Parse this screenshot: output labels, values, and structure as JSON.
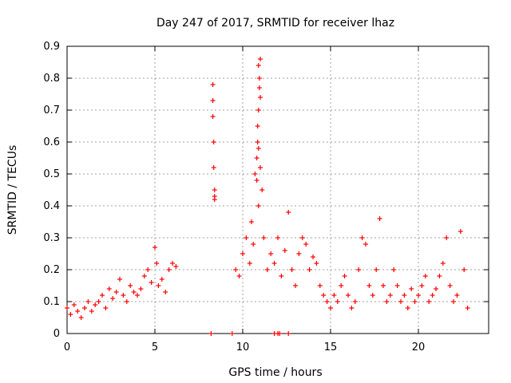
{
  "chart_data": {
    "type": "scatter",
    "title": "Day 247 of 2017, SRMTID for receiver lhaz",
    "xlabel": "GPS time / hours",
    "ylabel": "SRMTID / TECUs",
    "xlim": [
      0,
      24.0
    ],
    "ylim": [
      0,
      0.9
    ],
    "xticks": [
      0,
      5,
      10,
      15,
      20
    ],
    "xtick_labels": [
      "0",
      "5",
      "10",
      "15",
      "20"
    ],
    "yticks": [
      0,
      0.1,
      0.2,
      0.3,
      0.4,
      0.5,
      0.6,
      0.7,
      0.8,
      0.9
    ],
    "ytick_labels": [
      "0",
      "0.1",
      "0.2",
      "0.3",
      "0.4",
      "0.5",
      "0.6",
      "0.7",
      "0.8",
      "0.9"
    ],
    "grid": true,
    "legend": "none",
    "marker": "+",
    "color": "#ff0000",
    "series": [
      {
        "name": "SRMTID",
        "x": [
          0.0,
          0.2,
          0.4,
          0.6,
          0.8,
          1.0,
          1.2,
          1.4,
          1.6,
          1.8,
          2.0,
          2.2,
          2.4,
          2.6,
          2.8,
          3.0,
          3.2,
          3.4,
          3.6,
          3.8,
          4.0,
          4.2,
          4.4,
          4.6,
          4.8,
          5.0,
          5.1,
          5.2,
          5.4,
          5.6,
          5.8,
          6.0,
          6.2,
          8.3,
          8.3,
          8.3,
          8.35,
          8.35,
          8.4,
          8.4,
          8.4,
          9.6,
          9.8,
          10.0,
          10.2,
          10.4,
          10.5,
          10.6,
          10.7,
          10.8,
          10.85,
          10.9,
          10.95,
          11.0,
          11.1,
          11.2,
          11.4,
          11.6,
          11.8,
          12.0,
          12.2,
          12.4,
          12.6,
          12.8,
          13.0,
          13.2,
          13.4,
          13.6,
          13.8,
          14.0,
          14.2,
          14.4,
          14.6,
          14.8,
          15.0,
          15.2,
          15.4,
          15.6,
          15.8,
          16.0,
          16.2,
          16.4,
          16.6,
          16.8,
          17.0,
          17.2,
          17.4,
          17.6,
          17.8,
          18.0,
          18.2,
          18.4,
          18.6,
          18.8,
          19.0,
          19.2,
          19.4,
          19.6,
          19.8,
          20.0,
          20.2,
          20.4,
          20.6,
          20.8,
          21.0,
          21.2,
          21.4,
          21.6,
          21.8,
          22.0,
          22.2,
          22.4,
          22.6,
          22.8,
          10.9,
          10.95,
          11.0,
          10.85,
          10.9,
          11.0,
          10.8,
          10.9,
          8.2,
          9.4,
          11.8,
          12.0,
          12.1,
          12.6
        ],
        "y": [
          0.08,
          0.06,
          0.09,
          0.07,
          0.05,
          0.08,
          0.1,
          0.07,
          0.09,
          0.1,
          0.12,
          0.08,
          0.14,
          0.11,
          0.13,
          0.17,
          0.12,
          0.1,
          0.15,
          0.13,
          0.12,
          0.14,
          0.18,
          0.2,
          0.16,
          0.27,
          0.22,
          0.15,
          0.17,
          0.13,
          0.2,
          0.22,
          0.21,
          0.78,
          0.73,
          0.68,
          0.6,
          0.52,
          0.45,
          0.43,
          0.42,
          0.2,
          0.18,
          0.25,
          0.3,
          0.22,
          0.35,
          0.28,
          0.5,
          0.55,
          0.6,
          0.7,
          0.77,
          0.86,
          0.45,
          0.3,
          0.2,
          0.25,
          0.22,
          0.3,
          0.18,
          0.26,
          0.38,
          0.2,
          0.15,
          0.25,
          0.3,
          0.28,
          0.2,
          0.24,
          0.22,
          0.15,
          0.12,
          0.1,
          0.08,
          0.12,
          0.1,
          0.15,
          0.18,
          0.12,
          0.08,
          0.1,
          0.2,
          0.3,
          0.28,
          0.15,
          0.12,
          0.2,
          0.36,
          0.15,
          0.1,
          0.12,
          0.2,
          0.15,
          0.1,
          0.12,
          0.08,
          0.14,
          0.1,
          0.12,
          0.15,
          0.18,
          0.1,
          0.12,
          0.14,
          0.18,
          0.22,
          0.3,
          0.15,
          0.1,
          0.12,
          0.32,
          0.2,
          0.08,
          0.84,
          0.8,
          0.74,
          0.65,
          0.58,
          0.52,
          0.48,
          0.4,
          0.0,
          0.0,
          0.0,
          0.0,
          0.0,
          0.0
        ]
      }
    ]
  }
}
